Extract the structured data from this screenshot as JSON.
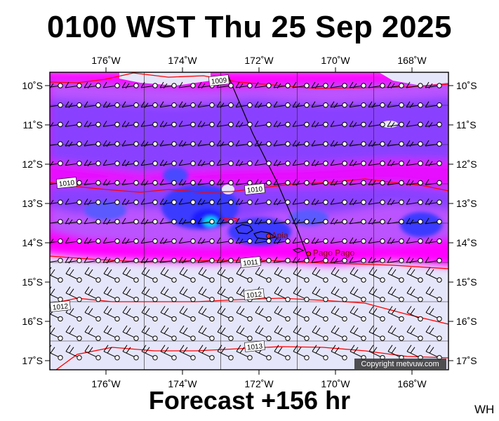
{
  "title": "0100 WST Thu 25 Sep 2025",
  "footer": "Forecast +156 hr",
  "initials": "WH",
  "copyright": "Copyright metvuw.com",
  "axes": {
    "lon_ticks": [
      "176˚W",
      "174˚W",
      "172˚W",
      "170˚W",
      "168˚W"
    ],
    "lat_ticks": [
      "10˚S",
      "11˚S",
      "12˚S",
      "13˚S",
      "14˚S",
      "15˚S",
      "16˚S",
      "17˚S"
    ]
  },
  "places": [
    {
      "name": "Apia",
      "lon": -171.75,
      "lat": -13.83
    },
    {
      "name": "Pago Pago",
      "lon": -170.7,
      "lat": -14.28
    }
  ],
  "isobars": [
    {
      "label": "1009"
    },
    {
      "label": "1010"
    },
    {
      "label": "1010"
    },
    {
      "label": "1010"
    },
    {
      "label": "1011"
    },
    {
      "label": "1012"
    },
    {
      "label": "1012"
    },
    {
      "label": "1013"
    }
  ],
  "colors": {
    "isobar": "#ff0000",
    "city": "#cc0000",
    "background_calm": "#e6e6fa",
    "magenta": "#ff00ff",
    "violet": "#9b3bff",
    "blue": "#3232ff",
    "cyan": "#00ffff"
  }
}
